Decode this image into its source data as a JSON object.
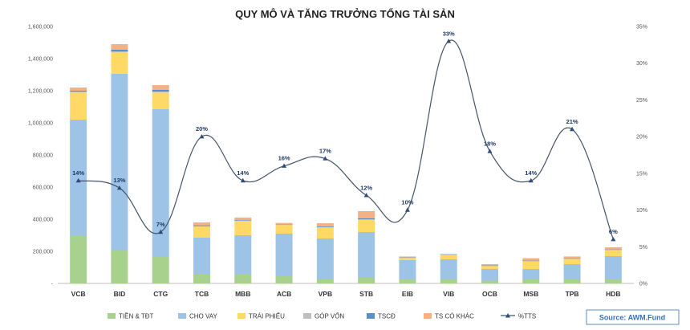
{
  "chart_data": {
    "type": "bar",
    "stacked": true,
    "title": "QUY MÔ VÀ TĂNG TRƯỞNG TỔNG TÀI SẢN",
    "categories": [
      "VCB",
      "BID",
      "CTG",
      "TCB",
      "MBB",
      "ACB",
      "VPB",
      "STB",
      "EIB",
      "VIB",
      "OCB",
      "MSB",
      "TPB",
      "HDB"
    ],
    "ylim": [
      0,
      1600000
    ],
    "y_ticks": [
      "-",
      "200,000",
      "400,000",
      "600,000",
      "800,000",
      "1,000,000",
      "1,200,000",
      "1,400,000",
      "1,600,000"
    ],
    "y2lim": [
      0,
      35
    ],
    "y2_ticks": [
      "0%",
      "5%",
      "10%",
      "15%",
      "20%",
      "25%",
      "30%",
      "35%"
    ],
    "grid": false,
    "legend": "bottom",
    "series": [
      {
        "name": "TIỀN & TĐT",
        "color": "#a9d18e",
        "values": [
          295000,
          205000,
          165000,
          55000,
          55000,
          45000,
          25000,
          35000,
          30000,
          25000,
          20000,
          25000,
          25000,
          30000
        ]
      },
      {
        "name": "CHO VAY",
        "color": "#9dc3e6",
        "values": [
          725000,
          1100000,
          920000,
          230000,
          245000,
          265000,
          255000,
          285000,
          115000,
          125000,
          70000,
          65000,
          95000,
          140000
        ]
      },
      {
        "name": "TRÁI PHIẾU",
        "color": "#ffd966",
        "values": [
          170000,
          135000,
          105000,
          70000,
          90000,
          55000,
          70000,
          75000,
          15000,
          30000,
          20000,
          50000,
          35000,
          40000
        ]
      },
      {
        "name": "GÓP VỐN",
        "color": "#bfbfbf",
        "values": [
          5000,
          5000,
          5000,
          2000,
          2000,
          1000,
          1000,
          5000,
          1000,
          1000,
          1000,
          1000,
          1000,
          1000
        ]
      },
      {
        "name": "TSCĐ",
        "color": "#5b8fc7",
        "values": [
          5000,
          10000,
          10000,
          5000,
          3000,
          3000,
          5000,
          5000,
          2000,
          1000,
          1000,
          1000,
          1000,
          1000
        ]
      },
      {
        "name": "TS CÓ KHÁC",
        "color": "#f4b183",
        "values": [
          20000,
          35000,
          30000,
          18000,
          15000,
          8000,
          19000,
          45000,
          5000,
          0,
          8000,
          15000,
          11000,
          13000
        ]
      }
    ],
    "line": {
      "name": "%TTS",
      "color": "#44546a",
      "axis": "secondary",
      "values": [
        14,
        13,
        7,
        20,
        14,
        16,
        17,
        12,
        10,
        33,
        18,
        14,
        21,
        6
      ],
      "labels": [
        "14%",
        "13%",
        "7%",
        "20%",
        "14%",
        "16%",
        "17%",
        "12%",
        "10%",
        "33%",
        "18%",
        "14%",
        "21%",
        "6%"
      ]
    },
    "source": "Source: AWM.Fund"
  }
}
